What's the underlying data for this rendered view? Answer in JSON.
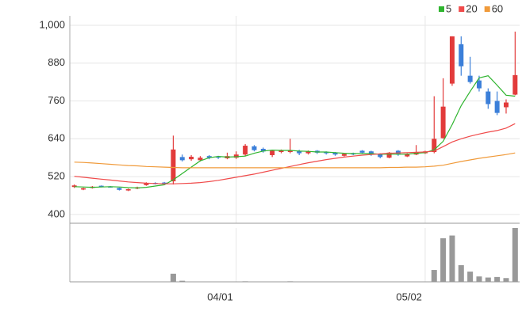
{
  "chart_data": {
    "type": "candlestick",
    "categories": [
      null,
      null,
      null,
      null,
      null,
      null,
      null,
      null,
      null,
      null,
      null,
      null,
      null,
      null,
      null,
      null,
      null,
      null,
      "04/01",
      null,
      null,
      null,
      null,
      null,
      null,
      null,
      null,
      null,
      null,
      null,
      null,
      null,
      null,
      null,
      null,
      null,
      null,
      null,
      null,
      "05/02",
      null,
      null,
      null,
      null,
      null,
      null,
      null,
      null,
      null,
      null
    ],
    "open": [
      487,
      479,
      484,
      491,
      489,
      484,
      476,
      482,
      493,
      500,
      501,
      505,
      582,
      575,
      572,
      585,
      584,
      578,
      580,
      590,
      616,
      608,
      588,
      598,
      598,
      602,
      594,
      602,
      598,
      596,
      586,
      594,
      602,
      600,
      592,
      580,
      602,
      584,
      590,
      594,
      598,
      642,
      815,
      940,
      840,
      825,
      790,
      760,
      740,
      780
    ],
    "high": [
      495,
      485,
      490,
      492,
      490,
      485,
      482,
      488,
      502,
      502,
      503,
      650,
      590,
      588,
      585,
      588,
      586,
      596,
      600,
      623,
      620,
      612,
      605,
      606,
      640,
      605,
      603,
      604,
      600,
      598,
      594,
      596,
      604,
      602,
      594,
      598,
      604,
      594,
      620,
      602,
      775,
      832,
      965,
      965,
      900,
      840,
      800,
      790,
      765,
      980
    ],
    "low": [
      484,
      477,
      482,
      486,
      485,
      476,
      474,
      480,
      491,
      495,
      497,
      495,
      568,
      570,
      568,
      575,
      576,
      575,
      576,
      585,
      600,
      596,
      582,
      594,
      594,
      588,
      590,
      592,
      590,
      586,
      584,
      588,
      592,
      586,
      578,
      578,
      586,
      582,
      588,
      592,
      594,
      640,
      808,
      840,
      815,
      790,
      735,
      715,
      720,
      778
    ],
    "close": [
      492,
      483,
      488,
      488,
      487,
      478,
      480,
      486,
      500,
      497,
      499,
      606,
      572,
      583,
      580,
      580,
      580,
      585,
      590,
      618,
      604,
      600,
      602,
      603,
      602,
      594,
      600,
      596,
      594,
      590,
      592,
      592,
      596,
      590,
      582,
      596,
      590,
      592,
      598,
      600,
      640,
      742,
      965,
      870,
      820,
      800,
      750,
      722,
      755,
      842
    ],
    "up_color": "#e23b3b",
    "down_color": "#3b7fd9",
    "series": [
      {
        "name": "5",
        "color": "#2fb52f",
        "values": [
          488,
          487,
          486,
          487,
          488,
          487,
          485,
          484,
          486,
          490,
          494,
          510,
          530,
          550,
          570,
          580,
          584,
          582,
          583,
          585,
          594,
          601,
          604,
          603,
          603,
          601,
          600,
          598,
          598,
          596,
          594,
          593,
          593,
          593,
          591,
          591,
          591,
          591,
          594,
          596,
          605,
          632,
          685,
          745,
          790,
          833,
          840,
          810,
          778,
          775
        ]
      },
      {
        "name": "20",
        "color": "#f04a4a",
        "values": [
          521,
          518,
          515,
          512,
          509,
          506,
          503,
          501,
          499,
          498,
          497,
          497,
          498,
          499,
          501,
          504,
          508,
          513,
          518,
          523,
          528,
          534,
          540,
          546,
          552,
          558,
          564,
          569,
          574,
          578,
          582,
          585,
          588,
          590,
          592,
          594,
          595,
          596,
          597,
          598,
          601,
          615,
          630,
          640,
          648,
          655,
          661,
          666,
          674,
          688
        ]
      },
      {
        "name": "60",
        "color": "#f09a3a",
        "values": [
          566,
          565,
          563,
          561,
          559,
          557,
          555,
          554,
          552,
          551,
          550,
          549,
          548,
          548,
          548,
          548,
          548,
          548,
          548,
          548,
          548,
          548,
          548,
          548,
          548,
          548,
          548,
          548,
          548,
          548,
          548,
          548,
          548,
          548,
          548,
          549,
          549,
          550,
          550,
          551,
          553,
          556,
          562,
          568,
          573,
          578,
          582,
          586,
          590,
          595
        ]
      }
    ],
    "volume": {
      "color": "#999999",
      "ylim": [
        0,
        100
      ],
      "values": [
        0,
        0,
        0,
        0,
        0,
        0,
        0,
        0,
        0,
        0,
        0,
        15,
        2,
        0,
        0,
        0,
        0,
        0,
        0,
        1,
        0,
        0,
        0,
        0,
        1,
        0,
        0,
        0,
        0,
        0,
        0,
        0,
        0,
        0,
        0,
        0,
        0,
        0,
        0,
        0,
        22,
        81,
        86,
        31,
        19,
        10,
        8,
        9,
        7,
        100
      ]
    },
    "ylim": [
      372,
      1030
    ],
    "yticks": [
      400,
      520,
      640,
      760,
      880,
      {
        "value": 1000,
        "label": "1,000"
      }
    ],
    "grid": true
  }
}
